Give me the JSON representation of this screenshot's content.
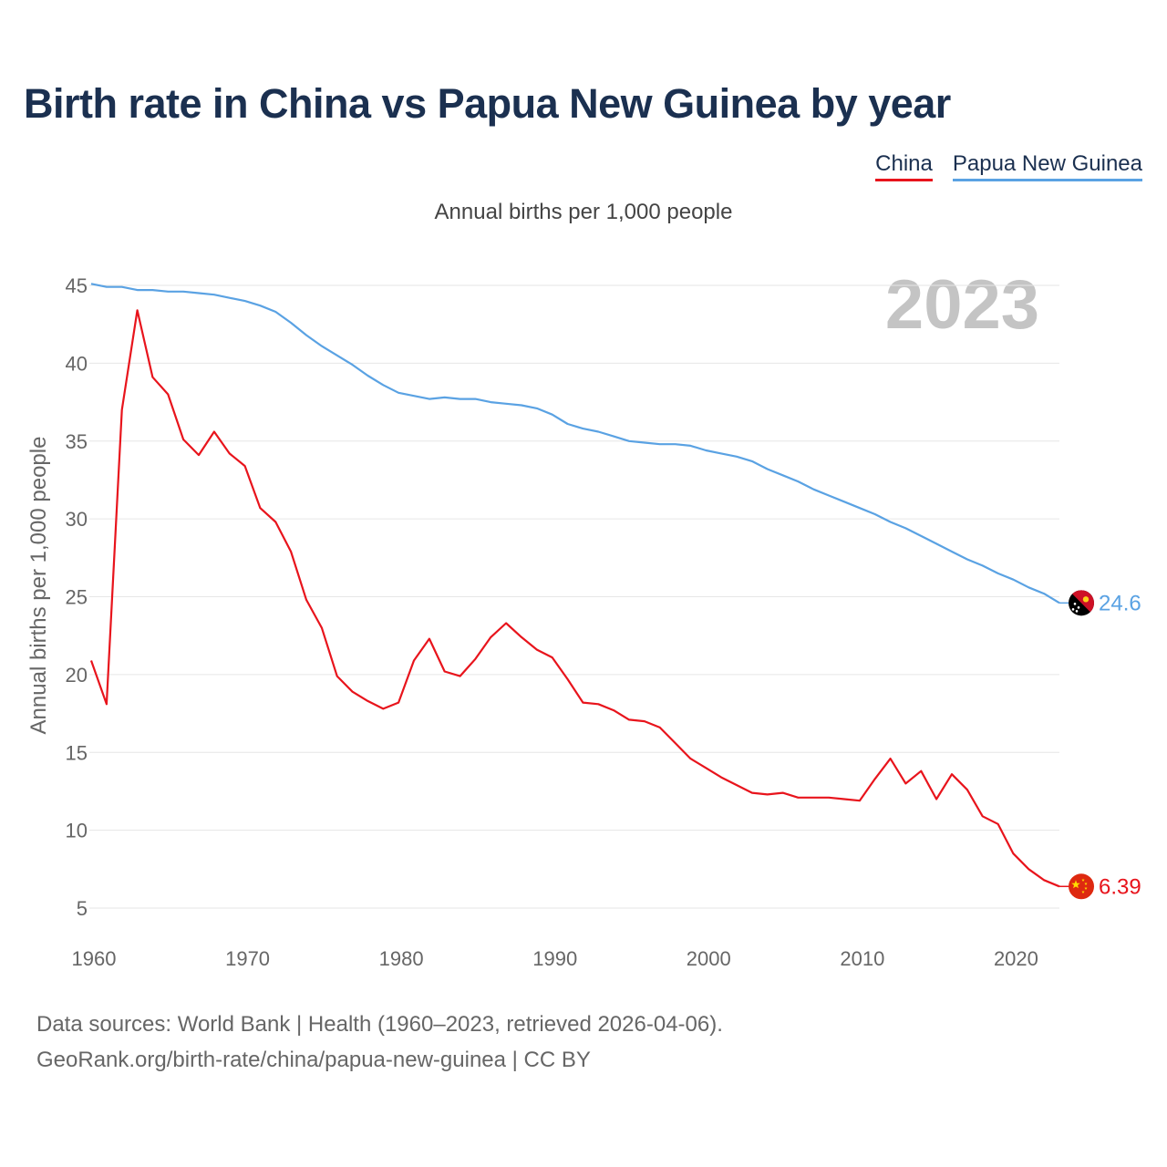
{
  "title": "Birth rate in China vs Papua New Guinea by year",
  "subtitle": "Annual births per 1,000 people",
  "year_watermark": "2023",
  "footer": {
    "line1": "Data sources: World Bank | Health (1960–2023, retrieved 2026-04-06).",
    "line2": "GeoRank.org/birth-rate/china/papua-new-guinea | CC BY"
  },
  "colors": {
    "china": "#e8141c",
    "png": "#5aa2e3",
    "grid": "#e6e6e6",
    "axis_text": "#666666",
    "title": "#1b3050"
  },
  "chart_data": {
    "type": "line",
    "title": "Birth rate in China vs Papua New Guinea by year",
    "subtitle": "Annual births per 1,000 people",
    "xlabel": "",
    "ylabel": "Annual births per 1,000 people",
    "xlim": [
      1960,
      2023
    ],
    "ylim": [
      4,
      46
    ],
    "yticks": [
      5,
      10,
      15,
      20,
      25,
      30,
      35,
      40,
      45
    ],
    "xticks": [
      1960,
      1970,
      1980,
      1990,
      2000,
      2010,
      2020
    ],
    "legend_position": "top-right",
    "x": [
      1960,
      1961,
      1962,
      1963,
      1964,
      1965,
      1966,
      1967,
      1968,
      1969,
      1970,
      1971,
      1972,
      1973,
      1974,
      1975,
      1976,
      1977,
      1978,
      1979,
      1980,
      1981,
      1982,
      1983,
      1984,
      1985,
      1986,
      1987,
      1988,
      1989,
      1990,
      1991,
      1992,
      1993,
      1994,
      1995,
      1996,
      1997,
      1998,
      1999,
      2000,
      2001,
      2002,
      2003,
      2004,
      2005,
      2006,
      2007,
      2008,
      2009,
      2010,
      2011,
      2012,
      2013,
      2014,
      2015,
      2016,
      2017,
      2018,
      2019,
      2020,
      2021,
      2022,
      2023
    ],
    "series": [
      {
        "name": "China",
        "color": "#e8141c",
        "end_label": "6.39",
        "values": [
          20.9,
          18.1,
          37.0,
          43.4,
          39.1,
          38.0,
          35.1,
          34.1,
          35.6,
          34.2,
          33.4,
          30.7,
          29.8,
          27.9,
          24.8,
          23.0,
          19.9,
          18.9,
          18.3,
          17.8,
          18.2,
          20.9,
          22.3,
          20.2,
          19.9,
          21.0,
          22.4,
          23.3,
          22.4,
          21.6,
          21.1,
          19.7,
          18.2,
          18.1,
          17.7,
          17.1,
          17.0,
          16.6,
          15.6,
          14.6,
          14.0,
          13.4,
          12.9,
          12.4,
          12.3,
          12.4,
          12.1,
          12.1,
          12.1,
          12.0,
          11.9,
          13.3,
          14.6,
          13.0,
          13.8,
          12.0,
          13.6,
          12.6,
          10.9,
          10.4,
          8.5,
          7.5,
          6.8,
          6.39
        ]
      },
      {
        "name": "Papua New Guinea",
        "color": "#5aa2e3",
        "end_label": "24.6",
        "values": [
          45.1,
          44.9,
          44.9,
          44.7,
          44.7,
          44.6,
          44.6,
          44.5,
          44.4,
          44.2,
          44.0,
          43.7,
          43.3,
          42.6,
          41.8,
          41.1,
          40.5,
          39.9,
          39.2,
          38.6,
          38.1,
          37.9,
          37.7,
          37.8,
          37.7,
          37.7,
          37.5,
          37.4,
          37.3,
          37.1,
          36.7,
          36.1,
          35.8,
          35.6,
          35.3,
          35.0,
          34.9,
          34.8,
          34.8,
          34.7,
          34.4,
          34.2,
          34.0,
          33.7,
          33.2,
          32.8,
          32.4,
          31.9,
          31.5,
          31.1,
          30.7,
          30.3,
          29.8,
          29.4,
          28.9,
          28.4,
          27.9,
          27.4,
          27.0,
          26.5,
          26.1,
          25.6,
          25.2,
          24.6
        ]
      }
    ]
  }
}
